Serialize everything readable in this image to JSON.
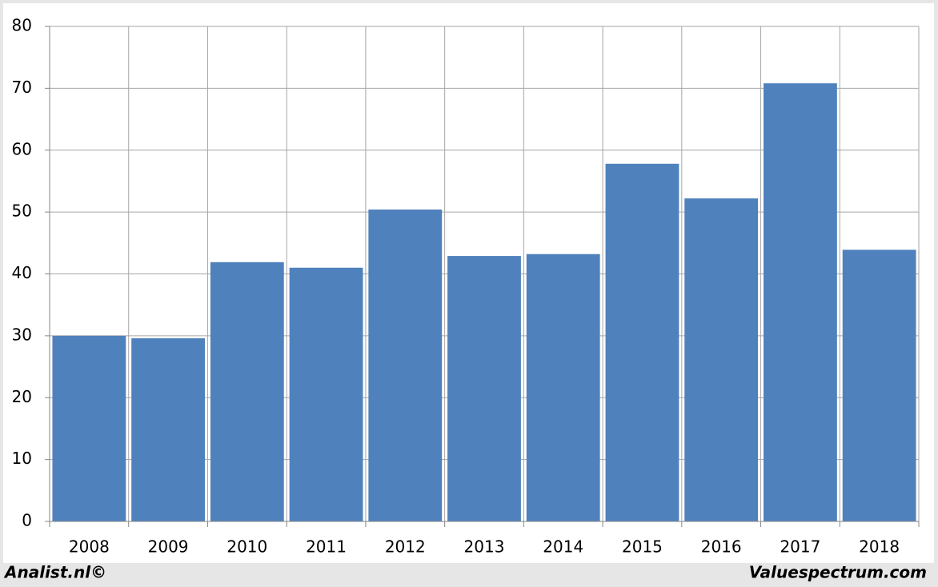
{
  "chart_data": {
    "type": "bar",
    "categories": [
      "2008",
      "2009",
      "2010",
      "2011",
      "2012",
      "2013",
      "2014",
      "2015",
      "2016",
      "2017",
      "2018"
    ],
    "values": [
      30,
      29.6,
      41.9,
      41.0,
      50.4,
      42.9,
      43.2,
      57.8,
      52.2,
      70.8,
      43.9
    ],
    "color": "#4f81bd",
    "ylim": [
      0,
      80
    ],
    "yticks": [
      0,
      10,
      20,
      30,
      40,
      50,
      60,
      70,
      80
    ],
    "grid": true
  },
  "footer": {
    "left": "Analist.nl©",
    "right": "Valuespectrum.com"
  }
}
